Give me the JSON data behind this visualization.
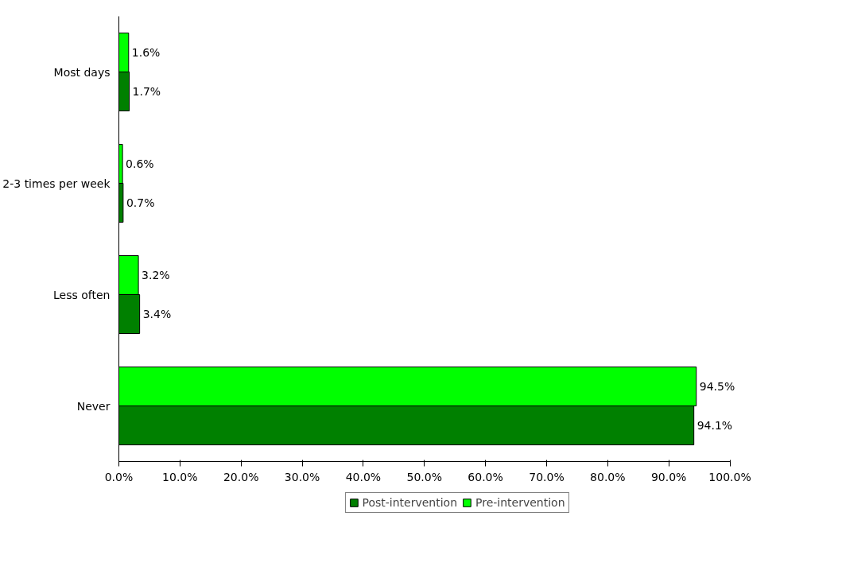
{
  "chart_data": {
    "type": "bar",
    "orientation": "horizontal",
    "categories": [
      "Most days",
      "2-3 times per week",
      "Less often",
      "Never"
    ],
    "series": [
      {
        "name": "Post-intervention",
        "color": "#008000",
        "values": [
          1.7,
          0.7,
          3.4,
          94.1
        ],
        "value_labels": [
          "1.7%",
          "0.7%",
          "3.4%",
          "94.1%"
        ]
      },
      {
        "name": "Pre-intervention",
        "color": "#00ff00",
        "values": [
          1.6,
          0.6,
          3.2,
          94.5
        ],
        "value_labels": [
          "1.6%",
          "0.6%",
          "3.2%",
          "94.5%"
        ]
      }
    ],
    "xlim": [
      0,
      100
    ],
    "xticks": [
      {
        "value": 0,
        "label": "0.0%"
      },
      {
        "value": 10,
        "label": "10.0%"
      },
      {
        "value": 20,
        "label": "20.0%"
      },
      {
        "value": 30,
        "label": "30.0%"
      },
      {
        "value": 40,
        "label": "40.0%"
      },
      {
        "value": 50,
        "label": "50.0%"
      },
      {
        "value": 60,
        "label": "60.0%"
      },
      {
        "value": 70,
        "label": "70.0%"
      },
      {
        "value": 80,
        "label": "80.0%"
      },
      {
        "value": 90,
        "label": "90.0%"
      },
      {
        "value": 100,
        "label": "100.0%"
      }
    ],
    "grid": false,
    "legend": "bottom"
  }
}
